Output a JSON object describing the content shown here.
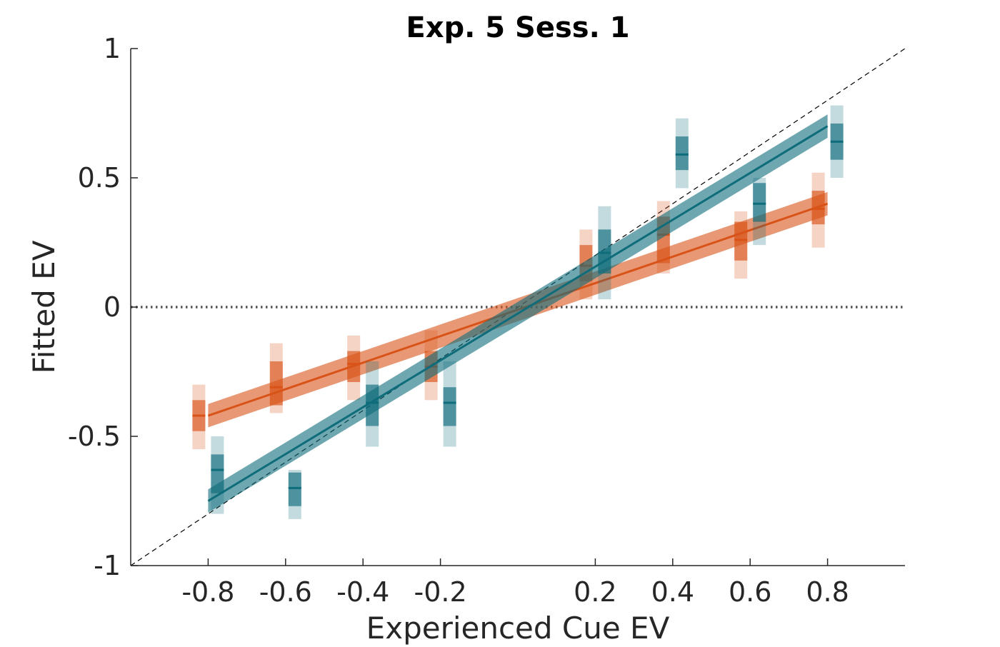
{
  "chart_data": {
    "type": "scatter",
    "title": "Exp. 5 Sess. 1",
    "xlabel": "Experienced Cue EV",
    "ylabel": "Fitted EV",
    "xlim": [
      -1,
      1
    ],
    "ylim": [
      -1,
      1
    ],
    "xticks": [
      -0.8,
      -0.6,
      -0.4,
      -0.2,
      0.2,
      0.4,
      0.6,
      0.8
    ],
    "xtick_labels": [
      "-0.8",
      "-0.6",
      "-0.4",
      "-0.2",
      "0.2",
      "0.4",
      "0.6",
      "0.8"
    ],
    "yticks": [
      -1,
      -0.5,
      0,
      0.5,
      1
    ],
    "ytick_labels": [
      "-1",
      "-0.5",
      "0",
      "0.5",
      "1"
    ],
    "grid": false,
    "legend": false,
    "reference_lines": [
      {
        "kind": "identity",
        "style": "dashed",
        "color": "#000000"
      },
      {
        "kind": "zero",
        "y": 0,
        "style": "dotted",
        "color": "#555555"
      }
    ],
    "series": [
      {
        "color": "#D95319",
        "points": [
          {
            "x": -0.8,
            "mean": -0.42,
            "inner": [
              -0.48,
              -0.36
            ],
            "outer": [
              -0.55,
              -0.3
            ]
          },
          {
            "x": -0.6,
            "mean": -0.31,
            "inner": [
              -0.38,
              -0.21
            ],
            "outer": [
              -0.41,
              -0.14
            ]
          },
          {
            "x": -0.4,
            "mean": -0.22,
            "inner": [
              -0.29,
              -0.17
            ],
            "outer": [
              -0.36,
              -0.11
            ]
          },
          {
            "x": -0.2,
            "mean": -0.23,
            "inner": [
              -0.29,
              -0.17
            ],
            "outer": [
              -0.36,
              -0.09
            ]
          },
          {
            "x": 0.2,
            "mean": 0.16,
            "inner": [
              0.1,
              0.24
            ],
            "outer": [
              0.03,
              0.3
            ]
          },
          {
            "x": 0.4,
            "mean": 0.28,
            "inner": [
              0.17,
              0.35
            ],
            "outer": [
              0.13,
              0.41
            ]
          },
          {
            "x": 0.6,
            "mean": 0.26,
            "inner": [
              0.18,
              0.33
            ],
            "outer": [
              0.11,
              0.37
            ]
          },
          {
            "x": 0.8,
            "mean": 0.38,
            "inner": [
              0.32,
              0.45
            ],
            "outer": [
              0.23,
              0.52
            ]
          }
        ],
        "fit": {
          "x": [
            -0.8,
            0.8
          ],
          "y": [
            -0.42,
            0.4
          ],
          "band": 0.045
        }
      },
      {
        "color": "#0E6C7B",
        "points": [
          {
            "x": -0.8,
            "mean": -0.63,
            "inner": [
              -0.72,
              -0.57
            ],
            "outer": [
              -0.8,
              -0.5
            ]
          },
          {
            "x": -0.6,
            "mean": -0.7,
            "inner": [
              -0.77,
              -0.64
            ],
            "outer": [
              -0.82,
              -0.63
            ]
          },
          {
            "x": -0.4,
            "mean": -0.37,
            "inner": [
              -0.46,
              -0.3
            ],
            "outer": [
              -0.54,
              -0.21
            ]
          },
          {
            "x": -0.2,
            "mean": -0.37,
            "inner": [
              -0.46,
              -0.31
            ],
            "outer": [
              -0.54,
              -0.21
            ]
          },
          {
            "x": 0.2,
            "mean": 0.21,
            "inner": [
              0.13,
              0.3
            ],
            "outer": [
              0.03,
              0.39
            ]
          },
          {
            "x": 0.4,
            "mean": 0.59,
            "inner": [
              0.53,
              0.66
            ],
            "outer": [
              0.46,
              0.73
            ]
          },
          {
            "x": 0.6,
            "mean": 0.4,
            "inner": [
              0.33,
              0.48
            ],
            "outer": [
              0.24,
              0.5
            ]
          },
          {
            "x": 0.8,
            "mean": 0.64,
            "inner": [
              0.57,
              0.71
            ],
            "outer": [
              0.5,
              0.78
            ]
          }
        ],
        "fit": {
          "x": [
            -0.8,
            0.8
          ],
          "y": [
            -0.75,
            0.7
          ],
          "band": 0.045
        }
      }
    ]
  }
}
